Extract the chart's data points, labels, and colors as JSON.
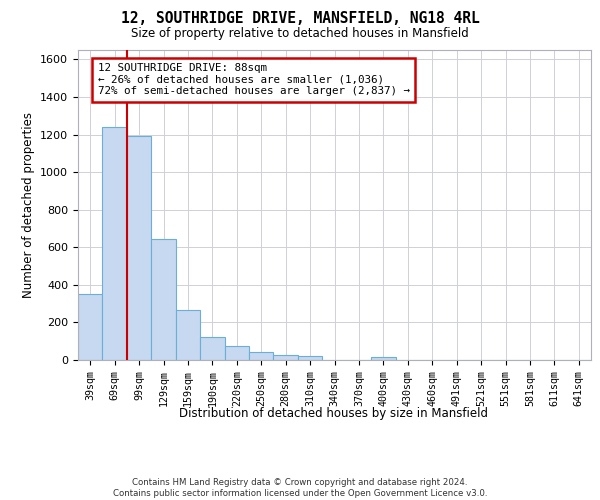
{
  "title_line1": "12, SOUTHRIDGE DRIVE, MANSFIELD, NG18 4RL",
  "title_line2": "Size of property relative to detached houses in Mansfield",
  "xlabel": "Distribution of detached houses by size in Mansfield",
  "ylabel": "Number of detached properties",
  "footer_line1": "Contains HM Land Registry data © Crown copyright and database right 2024.",
  "footer_line2": "Contains public sector information licensed under the Open Government Licence v3.0.",
  "categories": [
    "39sqm",
    "69sqm",
    "99sqm",
    "129sqm",
    "159sqm",
    "190sqm",
    "220sqm",
    "250sqm",
    "280sqm",
    "310sqm",
    "340sqm",
    "370sqm",
    "400sqm",
    "430sqm",
    "460sqm",
    "491sqm",
    "521sqm",
    "551sqm",
    "581sqm",
    "611sqm",
    "641sqm"
  ],
  "values": [
    350,
    1240,
    1190,
    645,
    265,
    120,
    75,
    40,
    25,
    20,
    0,
    0,
    15,
    0,
    0,
    0,
    0,
    0,
    0,
    0,
    0
  ],
  "bar_color": "#c6d9f0",
  "bar_edge_color": "#6baed6",
  "property_line_x": 1.5,
  "annotation_text": "12 SOUTHRIDGE DRIVE: 88sqm\n← 26% of detached houses are smaller (1,036)\n72% of semi-detached houses are larger (2,837) →",
  "annotation_box_color": "#ffffff",
  "annotation_box_edge_color": "#cc0000",
  "property_line_color": "#cc0000",
  "ylim_max": 1650,
  "yticks": [
    0,
    200,
    400,
    600,
    800,
    1000,
    1200,
    1400,
    1600
  ],
  "grid_color": "#d0d0d8",
  "background_color": "#ffffff"
}
